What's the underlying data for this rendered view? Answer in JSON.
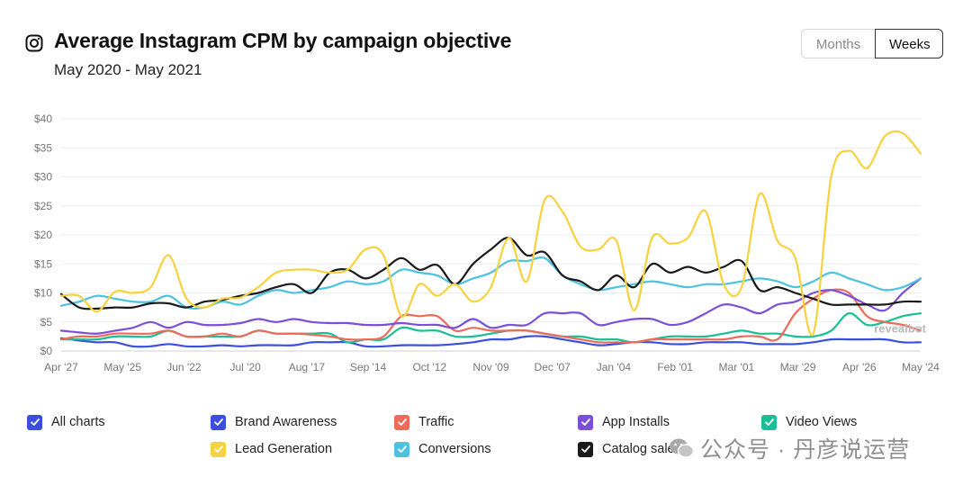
{
  "header": {
    "title": "Average Instagram CPM by campaign objective",
    "subtitle": "May 2020 - May 2021",
    "icon": "instagram-icon"
  },
  "toggle": {
    "months_label": "Months",
    "weeks_label": "Weeks",
    "selected": "Weeks"
  },
  "legend": [
    {
      "label": "All charts",
      "color": "#3a4fe0"
    },
    {
      "label": "Brand Awareness",
      "color": "#3a4fe0"
    },
    {
      "label": "Traffic",
      "color": "#ef6a5a"
    },
    {
      "label": "App Installs",
      "color": "#7b4fd8"
    },
    {
      "label": "Video Views",
      "color": "#1bbf96"
    },
    {
      "label": "Lead Generation",
      "color": "#f7d23e"
    },
    {
      "label": "Conversions",
      "color": "#4cc2e0"
    },
    {
      "label": "Catalog sales",
      "color": "#1a1a1a"
    }
  ],
  "branding": {
    "chart_brand": "revealbot",
    "watermark": "公众号 · 丹彦说运营"
  },
  "chart_data": {
    "type": "line",
    "title": "Average Instagram CPM by campaign objective",
    "subtitle": "May 2020 - May 2021",
    "xlabel": "",
    "ylabel": "",
    "ylim": [
      0,
      40
    ],
    "yticks": [
      "$0",
      "$5",
      "$10",
      "$15",
      "$20",
      "$25",
      "$30",
      "$35",
      "$40"
    ],
    "x_ticks": [
      "Apr '27",
      "May '25",
      "Jun '22",
      "Jul '20",
      "Aug '17",
      "Sep '14",
      "Oct '12",
      "Nov '09",
      "Dec '07",
      "Jan '04",
      "Feb '01",
      "Mar '01",
      "Mar '29",
      "Apr '26",
      "May '24"
    ],
    "grid": true,
    "legend_position": "bottom",
    "series": [
      {
        "name": "Lead Generation",
        "color": "#f7d23e",
        "values": [
          9.5,
          9.5,
          6.8,
          10.2,
          10.0,
          11.0,
          16.5,
          9.0,
          7.5,
          9.0,
          9.2,
          11.0,
          13.5,
          14.0,
          14.0,
          13.5,
          14.0,
          17.5,
          16.5,
          6.0,
          11.5,
          9.5,
          11.5,
          8.5,
          11.0,
          19.5,
          12.0,
          26.0,
          24.0,
          18.0,
          17.5,
          19.0,
          7.0,
          19.5,
          18.5,
          19.5,
          24.0,
          11.5,
          11.0,
          27.0,
          19.0,
          16.0,
          3.0,
          30.0,
          34.5,
          31.5,
          37.0,
          37.5,
          34.0
        ]
      },
      {
        "name": "Catalog sales",
        "color": "#1a1a1a",
        "values": [
          9.8,
          7.5,
          7.3,
          7.5,
          7.5,
          8.2,
          8.2,
          7.5,
          8.5,
          8.8,
          9.5,
          10.0,
          11.0,
          11.5,
          10.0,
          13.5,
          14.0,
          12.5,
          14.0,
          16.0,
          14.0,
          14.8,
          11.5,
          15.0,
          17.5,
          19.5,
          16.5,
          17.0,
          13.0,
          12.0,
          10.5,
          13.0,
          11.0,
          15.0,
          13.5,
          14.5,
          13.5,
          14.5,
          15.5,
          10.5,
          11.0,
          10.0,
          9.0,
          8.0,
          8.0,
          8.0,
          8.0,
          8.5,
          8.5
        ]
      },
      {
        "name": "Conversions",
        "color": "#4cc2e0",
        "values": [
          7.8,
          8.5,
          9.5,
          9.0,
          8.5,
          8.5,
          9.5,
          7.5,
          7.5,
          8.5,
          8.0,
          9.5,
          10.5,
          10.0,
          10.5,
          11.0,
          12.0,
          11.5,
          12.0,
          14.0,
          13.5,
          13.0,
          11.5,
          12.5,
          13.5,
          15.5,
          15.5,
          16.0,
          13.0,
          11.5,
          10.5,
          11.0,
          11.5,
          12.0,
          11.5,
          11.0,
          11.5,
          11.5,
          12.0,
          12.5,
          12.0,
          11.0,
          12.0,
          13.5,
          12.5,
          11.5,
          10.5,
          11.0,
          12.5
        ]
      },
      {
        "name": "App Installs",
        "color": "#7b4fd8",
        "values": [
          3.5,
          3.2,
          3.0,
          3.5,
          4.0,
          5.0,
          4.0,
          5.0,
          4.5,
          4.5,
          4.8,
          5.5,
          5.0,
          5.5,
          5.0,
          4.8,
          4.8,
          4.5,
          4.5,
          4.8,
          4.5,
          4.5,
          4.0,
          5.5,
          4.0,
          4.5,
          4.5,
          6.5,
          6.5,
          6.5,
          4.5,
          5.0,
          5.5,
          5.5,
          4.5,
          5.0,
          6.5,
          8.0,
          7.5,
          6.5,
          8.0,
          8.5,
          10.0,
          10.5,
          9.5,
          8.0,
          7.0,
          10.0,
          12.5
        ]
      },
      {
        "name": "Traffic",
        "color": "#ef6a5a",
        "values": [
          2.0,
          2.5,
          2.5,
          3.0,
          3.0,
          3.0,
          3.5,
          2.5,
          2.5,
          3.0,
          2.5,
          3.5,
          3.0,
          3.0,
          2.8,
          2.5,
          2.0,
          2.0,
          2.5,
          6.0,
          6.0,
          6.0,
          3.5,
          4.0,
          3.5,
          3.5,
          3.5,
          3.0,
          2.5,
          2.0,
          1.5,
          1.5,
          1.5,
          2.0,
          2.0,
          2.0,
          2.0,
          2.0,
          2.5,
          2.5,
          2.0,
          6.5,
          9.0,
          10.5,
          10.0,
          6.0,
          5.0,
          4.5,
          3.5
        ]
      },
      {
        "name": "Video Views",
        "color": "#1bbf96",
        "values": [
          2.0,
          2.0,
          2.0,
          2.5,
          2.5,
          2.5,
          3.5,
          2.5,
          2.5,
          2.5,
          2.5,
          3.5,
          3.0,
          3.0,
          3.0,
          3.0,
          1.5,
          2.0,
          2.0,
          4.0,
          3.5,
          3.5,
          2.5,
          2.5,
          3.0,
          3.5,
          3.5,
          3.0,
          2.5,
          2.5,
          2.0,
          2.0,
          1.5,
          2.0,
          2.5,
          2.5,
          2.5,
          3.0,
          3.5,
          3.0,
          3.0,
          2.5,
          2.5,
          3.5,
          6.5,
          4.5,
          5.0,
          6.0,
          6.5
        ]
      },
      {
        "name": "Brand Awareness",
        "color": "#3a4fe0",
        "values": [
          2.2,
          1.8,
          1.5,
          1.5,
          0.8,
          0.8,
          1.2,
          0.8,
          0.8,
          1.0,
          0.8,
          1.0,
          1.0,
          1.0,
          1.5,
          1.5,
          1.5,
          0.8,
          0.8,
          1.0,
          1.0,
          1.0,
          1.2,
          1.5,
          2.0,
          2.0,
          2.5,
          2.5,
          2.0,
          1.5,
          1.0,
          1.2,
          1.5,
          1.5,
          1.2,
          1.2,
          1.5,
          1.5,
          1.5,
          1.2,
          1.2,
          1.2,
          1.5,
          2.0,
          2.0,
          2.0,
          2.0,
          1.5,
          1.5
        ]
      }
    ]
  }
}
